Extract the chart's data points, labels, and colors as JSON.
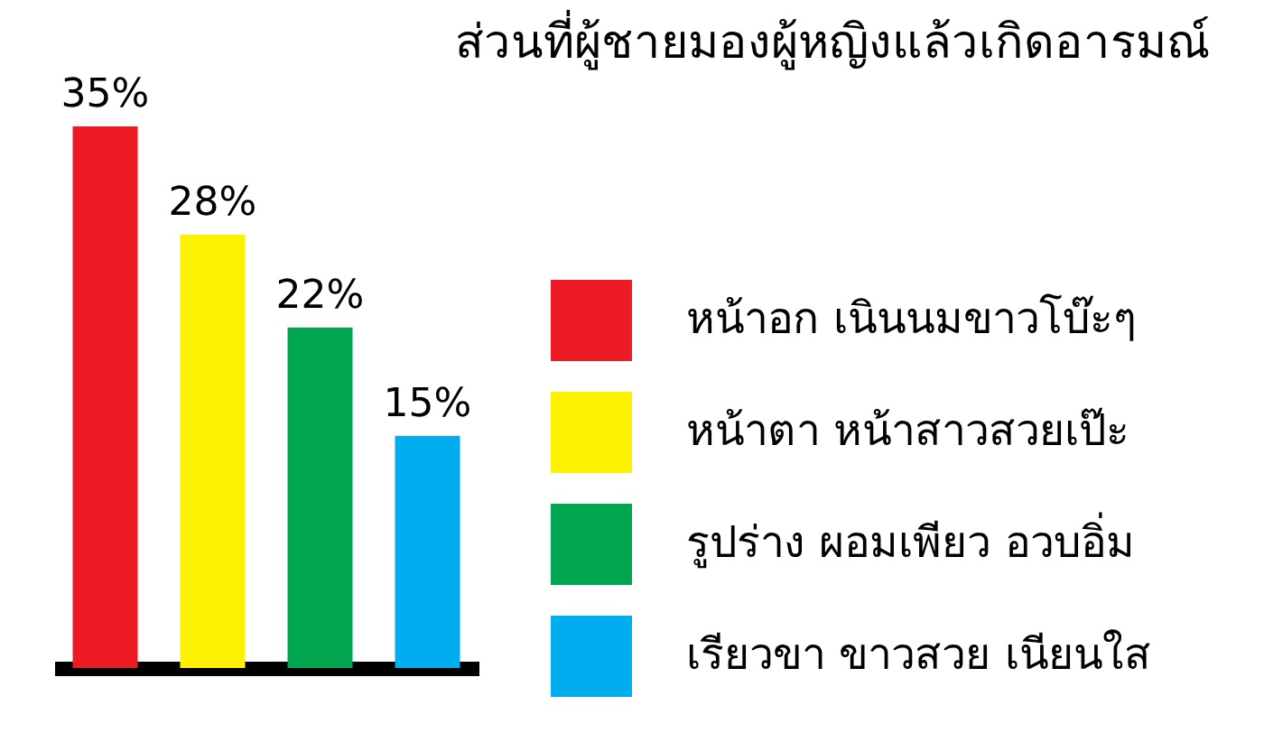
{
  "chart_data": {
    "type": "bar",
    "title": "ส่วนที่ผู้ชายมองผู้หญิงแล้วเกิดอารมณ์",
    "categories": [
      null,
      null,
      null,
      null
    ],
    "series": [
      {
        "name": "หน้าอก เนินนมขาวโบ๊ะๆ",
        "color": "#ed1c24",
        "values": [
          35,
          null,
          null,
          null
        ],
        "value_labels": [
          "35%",
          null,
          null,
          null
        ]
      },
      {
        "name": "หน้าตา หน้าสาวสวยเป๊ะ",
        "color": "#fff200",
        "values": [
          null,
          28,
          null,
          null
        ],
        "value_labels": [
          null,
          "28%",
          null,
          null
        ]
      },
      {
        "name": "รูปร่าง ผอมเพียว อวบอิ่ม",
        "color": "#00a650",
        "values": [
          null,
          null,
          22,
          null
        ],
        "value_labels": [
          null,
          null,
          "22%",
          null
        ]
      },
      {
        "name": "เรียวขา ขาวสวย เนียนใส",
        "color": "#00aeef",
        "values": [
          null,
          null,
          null,
          15
        ],
        "value_labels": [
          null,
          null,
          null,
          "15%"
        ]
      }
    ],
    "stacked": true,
    "legend": "right",
    "grid": false
  }
}
